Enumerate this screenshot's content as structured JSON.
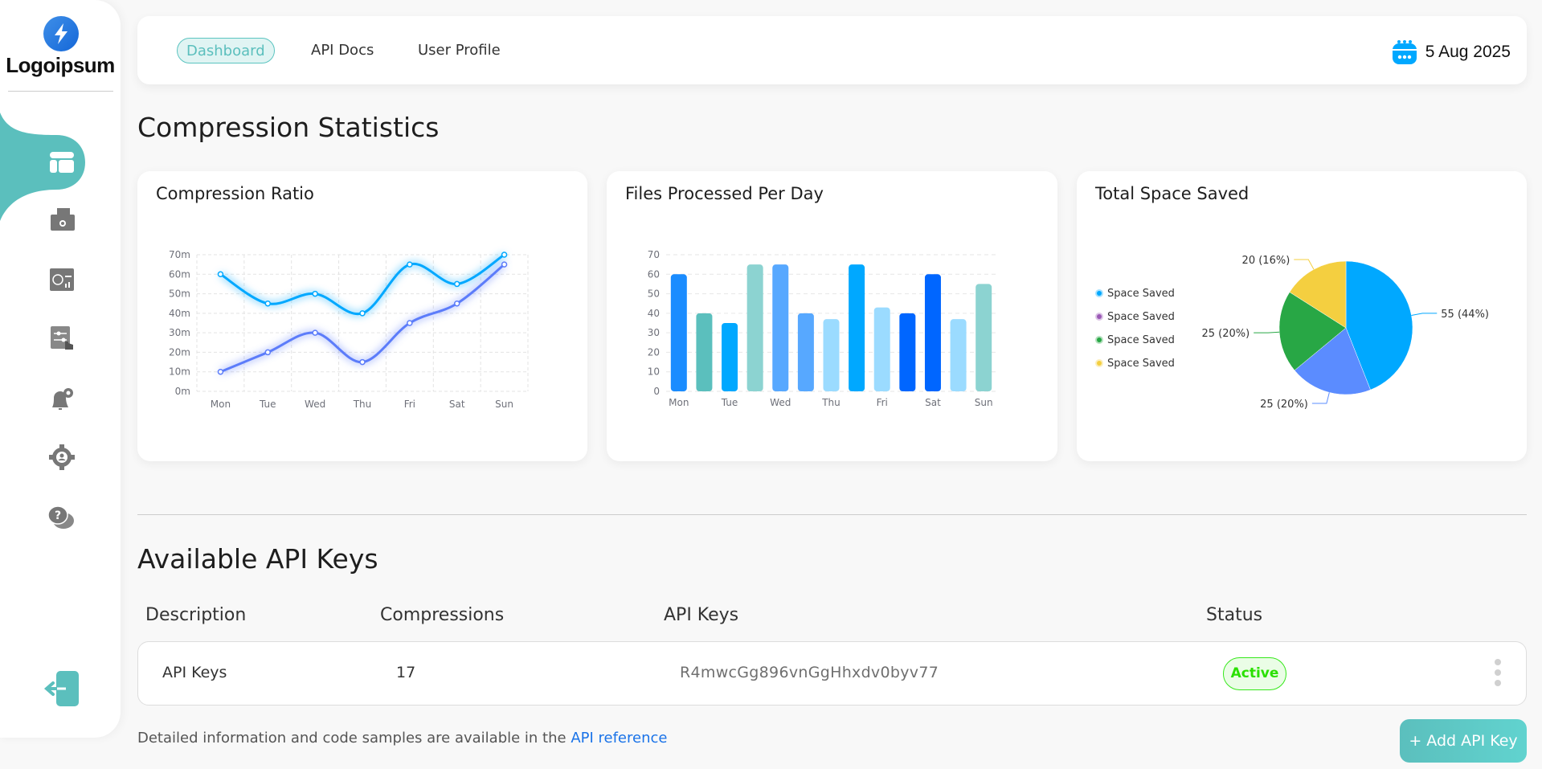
{
  "brand": {
    "name": "Logoipsum"
  },
  "sidebar": {
    "items": [
      {
        "icon": "dashboard-icon",
        "active": true
      },
      {
        "icon": "folder-settings-icon"
      },
      {
        "icon": "analytics-window-icon"
      },
      {
        "icon": "settings-touch-icon"
      },
      {
        "icon": "notification-settings-icon"
      },
      {
        "icon": "user-settings-icon"
      },
      {
        "icon": "help-chat-icon"
      }
    ],
    "logout_icon": "logout-icon",
    "accent": "#5bbfbd"
  },
  "header": {
    "tabs": [
      {
        "label": "Dashboard",
        "active": true
      },
      {
        "label": "API Docs"
      },
      {
        "label": "User Profile"
      }
    ],
    "date": "5 Aug 2025",
    "date_icon": "calendar-icon"
  },
  "stats": {
    "title": "Compression Statistics"
  },
  "chart_data": [
    {
      "type": "line",
      "title": "Compression Ratio",
      "categories": [
        "Mon",
        "Tue",
        "Wed",
        "Thu",
        "Fri",
        "Sat",
        "Sun"
      ],
      "ylim": [
        0,
        70
      ],
      "yticks": [
        "0m",
        "10m",
        "20m",
        "30m",
        "40m",
        "50m",
        "60m",
        "70m"
      ],
      "grid": true,
      "smooth": true,
      "series": [
        {
          "values": [
            60,
            45,
            50,
            40,
            65,
            55,
            70
          ],
          "color": "#00a8ff"
        },
        {
          "values": [
            10,
            20,
            30,
            15,
            35,
            45,
            65
          ],
          "color": "#5b7cfa"
        }
      ]
    },
    {
      "type": "bar",
      "title": "Files Processed Per Day",
      "categories": [
        "Mon",
        "",
        "Tue",
        "",
        "Wed",
        "",
        "Thu",
        "",
        "Fri",
        "",
        "Sat",
        "",
        "Sun"
      ],
      "ylim": [
        0,
        70
      ],
      "yticks": [
        "0",
        "10",
        "20",
        "30",
        "40",
        "50",
        "60",
        "70"
      ],
      "grid": true,
      "values": [
        60,
        40,
        35,
        65,
        65,
        40,
        37,
        65,
        43,
        40,
        60,
        37,
        55
      ],
      "colors": [
        "#1a8cff",
        "#5bbfbd",
        "#00a8ff",
        "#8cd3d1",
        "#57a8ff",
        "#57a8ff",
        "#9bdbff",
        "#00a8ff",
        "#9bdbff",
        "#0066ff",
        "#0066ff",
        "#9bdbff",
        "#8cd3d1"
      ]
    },
    {
      "type": "pie",
      "title": "Total Space Saved",
      "legend_position": "left",
      "legend": [
        {
          "label": "Space Saved",
          "color": "#00a8ff"
        },
        {
          "label": "Space Saved",
          "color": "#9b59b6"
        },
        {
          "label": "Space Saved",
          "color": "#28a745"
        },
        {
          "label": "Space Saved",
          "color": "#f4cf40"
        }
      ],
      "slices": [
        {
          "value": 55,
          "label": "55 (44%)",
          "color": "#00a8ff"
        },
        {
          "value": 25,
          "label": "25 (20%)",
          "color": "#5b8cff"
        },
        {
          "value": 25,
          "label": "25 (20%)",
          "color": "#28a745"
        },
        {
          "value": 20,
          "label": "20 (16%)",
          "color": "#f4cf40"
        }
      ]
    }
  ],
  "api_keys": {
    "title": "Available API Keys",
    "columns": [
      "Description",
      "Compressions",
      "API Keys",
      "Status"
    ],
    "rows": [
      {
        "description": "API Keys",
        "compressions": "17",
        "key": "R4mwcGg896vnGgHhxdv0byv77",
        "status": "Active"
      }
    ],
    "footer_text": "Detailed information and code samples are available in the ",
    "footer_link": "API reference",
    "add_button": "+ Add API Key",
    "more_icon": "more-vertical-icon"
  }
}
